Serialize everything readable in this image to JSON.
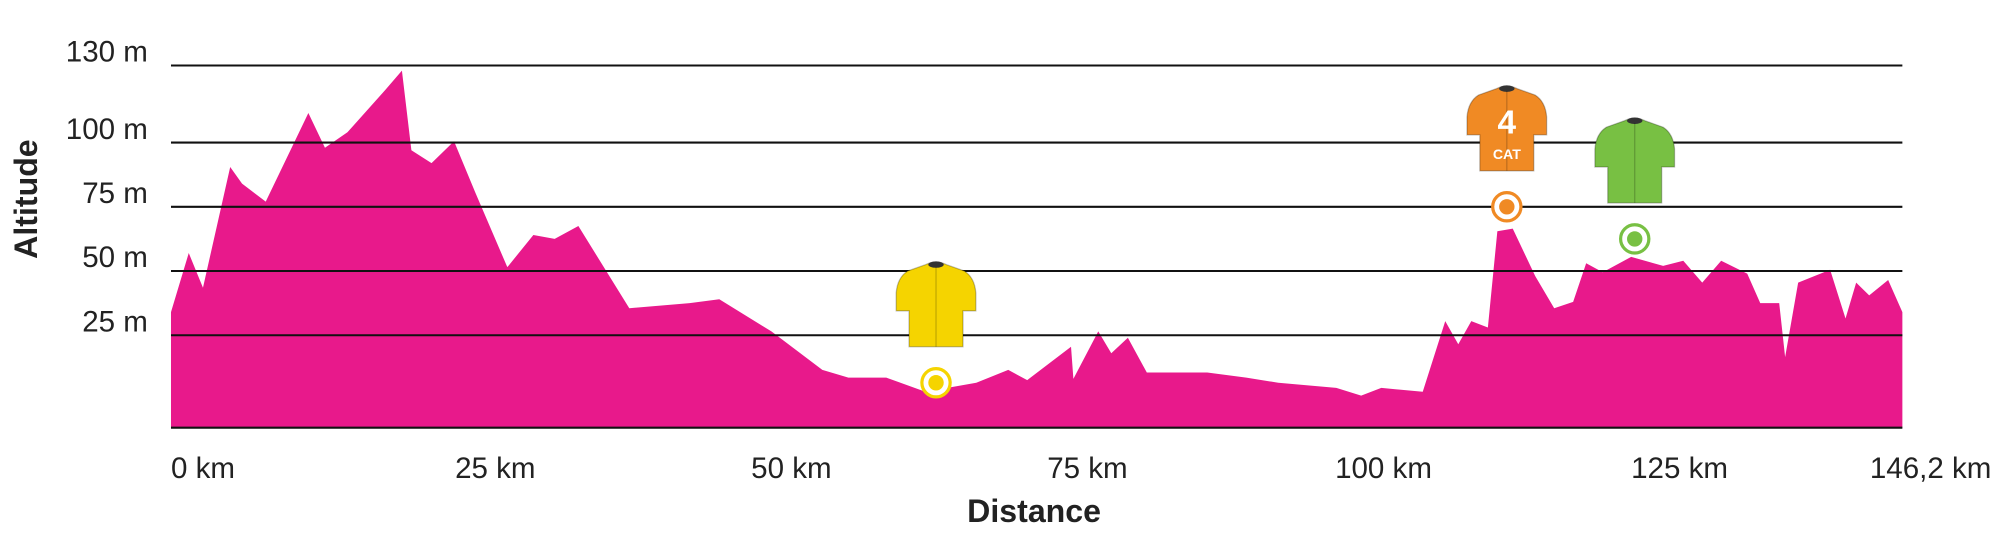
{
  "chart_data": {
    "type": "area",
    "x_label": "Distance",
    "y_label": "Altitude",
    "xlim": [
      0,
      146.2
    ],
    "ylim": [
      -11,
      138
    ],
    "xticks": [
      {
        "value": 0,
        "label": "0 km"
      },
      {
        "value": 25,
        "label": "25 km"
      },
      {
        "value": 50,
        "label": "50 km"
      },
      {
        "value": 75,
        "label": "75 km"
      },
      {
        "value": 100,
        "label": "100 km"
      },
      {
        "value": 125,
        "label": "125 km"
      },
      {
        "value": 146.2,
        "label": "146,2 km"
      }
    ],
    "yticks": [
      {
        "value": 25,
        "label": "25 m"
      },
      {
        "value": 50,
        "label": "50 m"
      },
      {
        "value": 75,
        "label": "75 m"
      },
      {
        "value": 100,
        "label": "100 m"
      },
      {
        "value": 130,
        "label": "130 m"
      }
    ],
    "grid": true,
    "series": [
      {
        "name": "Altitude",
        "color": "#e8198b",
        "x": [
          0,
          1.5,
          2.7,
          5.0,
          6.0,
          8.0,
          11.6,
          13.0,
          14.9,
          18.1,
          19.5,
          20.3,
          22.0,
          23.9,
          25.7,
          28.4,
          30.6,
          32.4,
          34.4,
          38.7,
          43.8,
          46.3,
          50.7,
          55.0,
          57.2,
          60.4,
          63.7,
          68.0,
          70.7,
          72.3,
          76.0,
          76.2,
          78.3,
          79.4,
          80.8,
          82.4,
          87.5,
          90.8,
          93.5,
          98.4,
          100.5,
          102.2,
          105.7,
          107.6,
          108.7,
          109.8,
          111.2,
          112.0,
          113.3,
          115.2,
          116.8,
          118.4,
          119.5,
          120.9,
          123.3,
          126.0,
          127.7,
          129.3,
          130.9,
          133.1,
          134.2,
          135.8,
          136.3,
          137.4,
          140.1,
          141.4,
          142.3,
          143.4,
          145.0,
          146.2
        ],
        "values": [
          34,
          57,
          43.5,
          90.5,
          84,
          77,
          111.5,
          98,
          104,
          120.5,
          128,
          97,
          92,
          100.5,
          80.5,
          51.5,
          64,
          62.5,
          67.5,
          35.5,
          37.5,
          39,
          26.5,
          11.5,
          8.5,
          8.5,
          3,
          6.5,
          11.5,
          7.5,
          20.5,
          8,
          26.5,
          18,
          24,
          10.5,
          10.5,
          8.5,
          6.5,
          4.5,
          1.5,
          4.5,
          3,
          30.5,
          21.5,
          30.5,
          28,
          65.5,
          66.5,
          48,
          35.5,
          38,
          53,
          49.5,
          55.5,
          52,
          54,
          45.5,
          54,
          49,
          37.5,
          37.5,
          16.5,
          45.5,
          50.5,
          31.5,
          45.5,
          40.5,
          46.5,
          34
        ]
      }
    ],
    "markers": [
      {
        "x": 64.6,
        "y": 6.5,
        "color": "#f5d400"
      },
      {
        "x": 112.8,
        "y": 75,
        "color": "#f08a24",
        "label": "4",
        "sublabel": "CAT"
      },
      {
        "x": 123.6,
        "y": 62.5,
        "color": "#78c043"
      }
    ]
  }
}
